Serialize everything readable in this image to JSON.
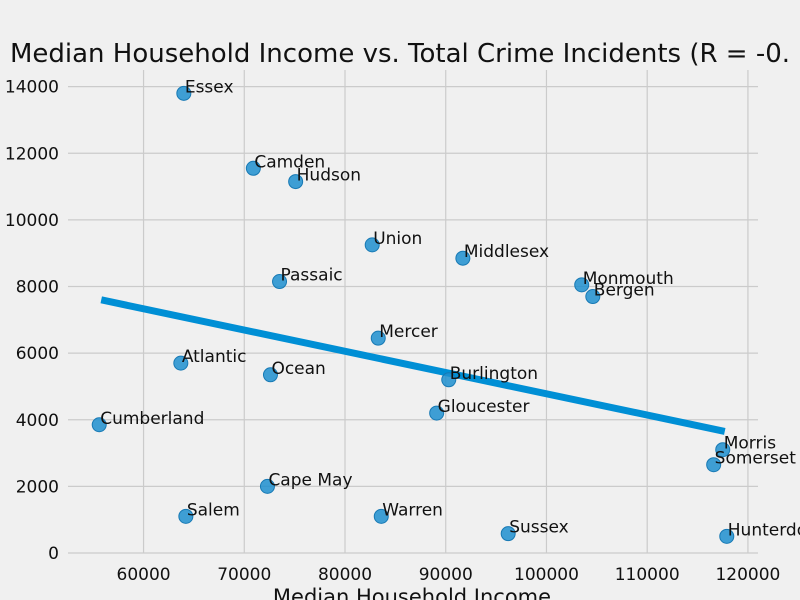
{
  "chart_data": {
    "type": "scatter",
    "title": "Median Household Income vs. Total Crime Incidents (R = -0.",
    "xlabel": "Median Household Income",
    "ylabel": "",
    "xlim": [
      52500,
      121000
    ],
    "ylim": [
      0,
      14500
    ],
    "xticks": [
      60000,
      70000,
      80000,
      90000,
      100000,
      110000,
      120000
    ],
    "yticks": [
      0,
      2000,
      4000,
      6000,
      8000,
      10000,
      12000,
      14000
    ],
    "grid": true,
    "point_color": "#1f8fcf",
    "trend_color": "#008fd5",
    "trendline": {
      "x": [
        55800,
        117700
      ],
      "y": [
        7600,
        3650
      ]
    },
    "points": [
      {
        "label": "Essex",
        "x": 64000,
        "y": 13800
      },
      {
        "label": "Camden",
        "x": 70900,
        "y": 11550
      },
      {
        "label": "Hudson",
        "x": 75100,
        "y": 11150
      },
      {
        "label": "Union",
        "x": 82700,
        "y": 9250
      },
      {
        "label": "Middlesex",
        "x": 91700,
        "y": 8850
      },
      {
        "label": "Passaic",
        "x": 73500,
        "y": 8150
      },
      {
        "label": "Monmouth",
        "x": 103500,
        "y": 8050
      },
      {
        "label": "Bergen",
        "x": 104600,
        "y": 7700
      },
      {
        "label": "Mercer",
        "x": 83300,
        "y": 6450
      },
      {
        "label": "Atlantic",
        "x": 63700,
        "y": 5700
      },
      {
        "label": "Ocean",
        "x": 72600,
        "y": 5350
      },
      {
        "label": "Burlington",
        "x": 90300,
        "y": 5200
      },
      {
        "label": "Gloucester",
        "x": 89100,
        "y": 4200
      },
      {
        "label": "Cumberland",
        "x": 55600,
        "y": 3850
      },
      {
        "label": "Morris",
        "x": 117500,
        "y": 3100
      },
      {
        "label": "Somerset",
        "x": 116600,
        "y": 2650
      },
      {
        "label": "Cape May",
        "x": 72300,
        "y": 2000
      },
      {
        "label": "Salem",
        "x": 64200,
        "y": 1100
      },
      {
        "label": "Warren",
        "x": 83600,
        "y": 1100
      },
      {
        "label": "Sussex",
        "x": 96200,
        "y": 580
      },
      {
        "label": "Hunterdon",
        "x": 117900,
        "y": 500
      }
    ]
  }
}
